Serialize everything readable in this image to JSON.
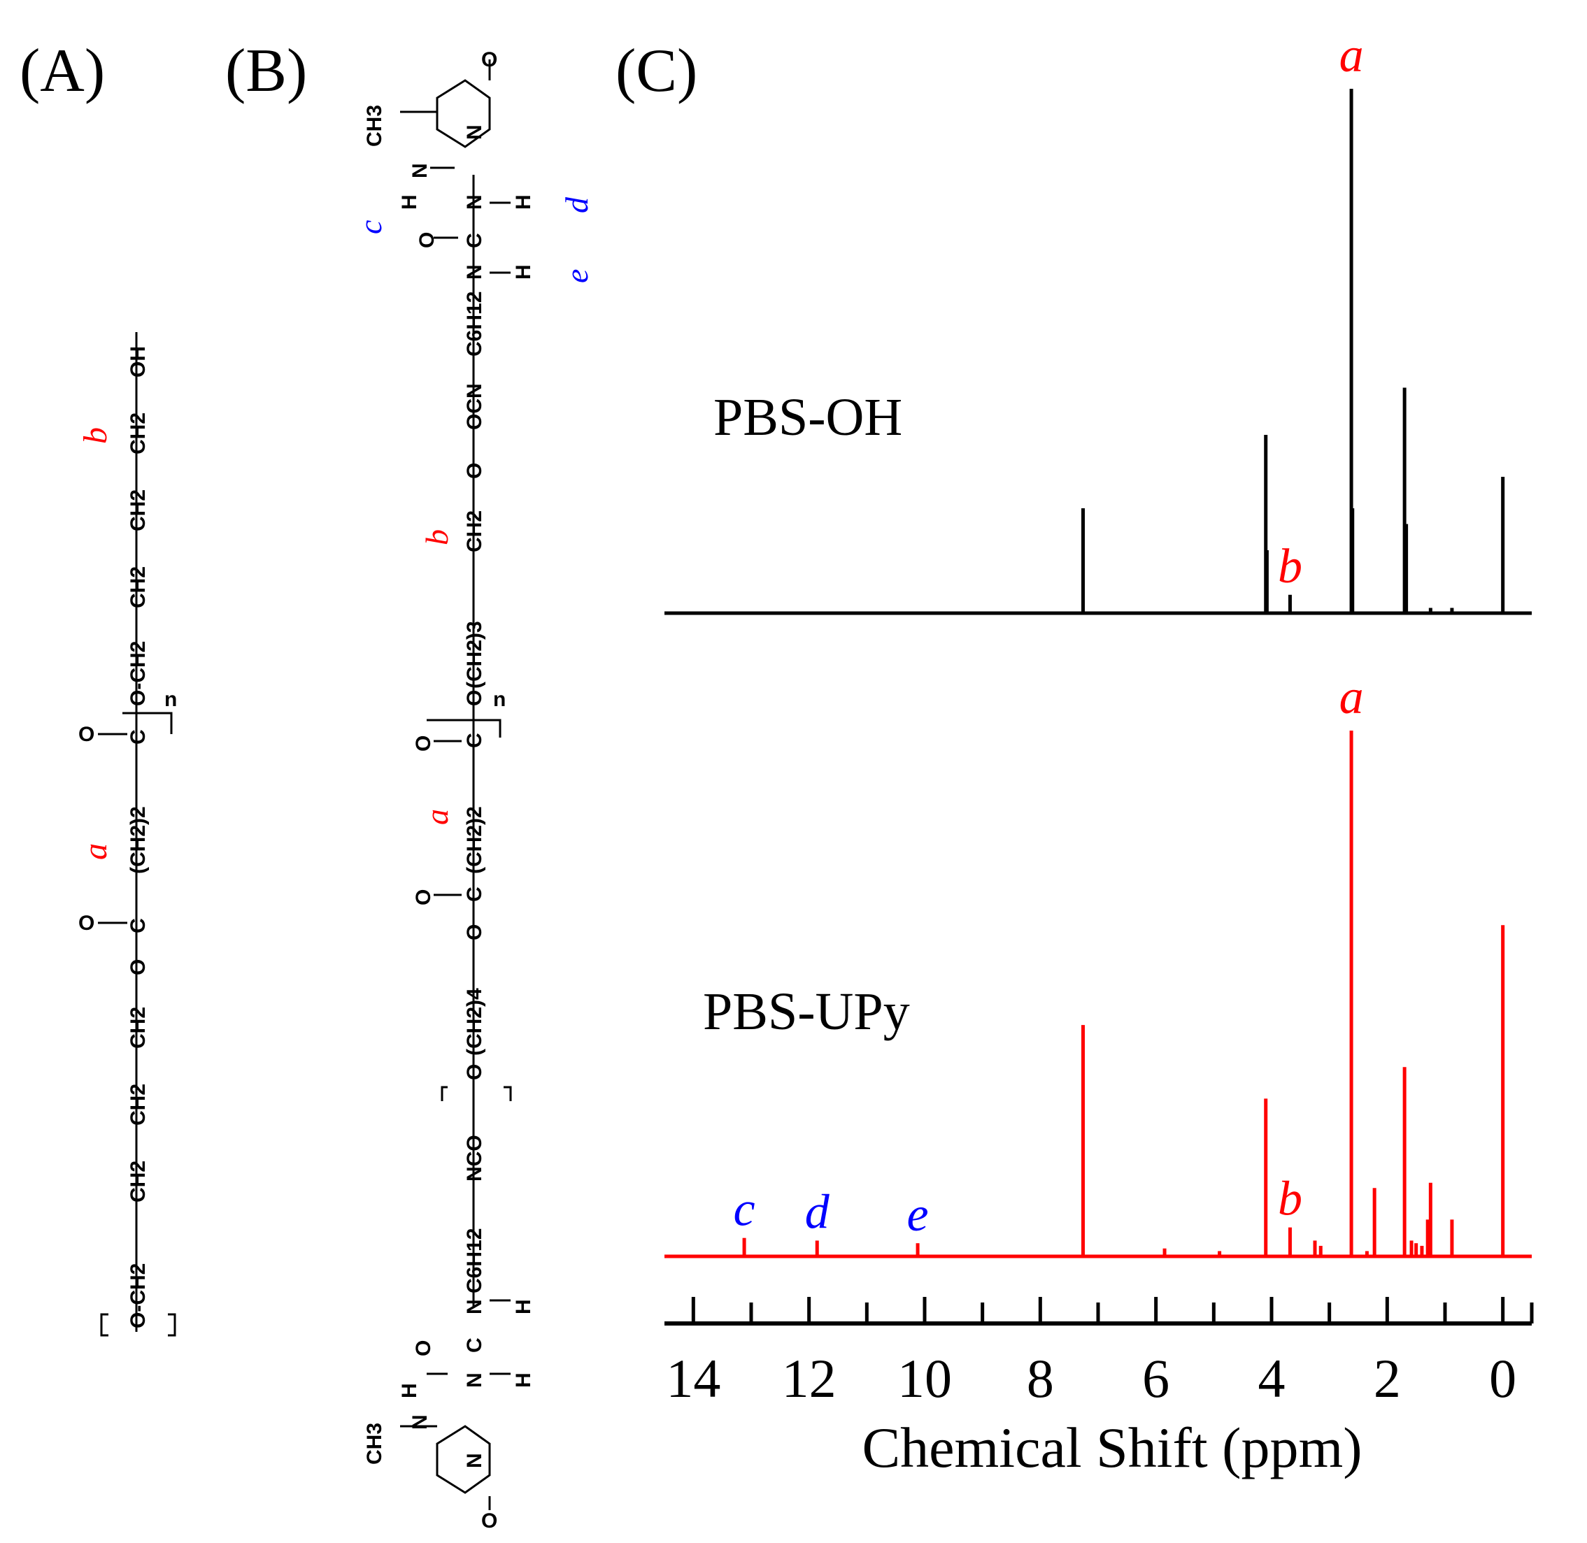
{
  "panels": {
    "A": "(A)",
    "B": "(B)",
    "C": "(C)"
  },
  "structure_A": {
    "repeat_unit_parts": [
      "O-CH2",
      "CH2",
      "CH2",
      "CH2",
      "O",
      "C",
      "O",
      "(CH2)2",
      "C",
      "O",
      "O-CH2",
      "CH2",
      "CH2",
      "CH2",
      "OH"
    ],
    "subscript_n": "n",
    "label_a": "a",
    "label_b": "b"
  },
  "structure_B": {
    "parts_text": [
      "CH3",
      "N",
      "N",
      "H",
      "O",
      "C",
      "N",
      "H",
      "N",
      "H",
      "C6H12",
      "NCO",
      "O",
      "(CH2)4",
      "O",
      "C",
      "O",
      "(CH2)2",
      "C",
      "O",
      "O",
      "(CH2)3",
      "CH2",
      "O",
      "OCN",
      "C6H12",
      "N",
      "H",
      "C",
      "O",
      "N",
      "H",
      "N",
      "H",
      "N",
      "CH3",
      "O",
      "O"
    ],
    "subscript_n": "n",
    "labels": {
      "a": "a",
      "b": "b",
      "c": "c",
      "d": "d",
      "e": "e"
    }
  },
  "colors": {
    "black_trace": "#000000",
    "red_trace": "#ff0000",
    "red_label": "#ff0000",
    "blue_label": "#0000ff"
  },
  "chart_data": {
    "type": "line",
    "title": "",
    "xlabel": "Chemical Shift (ppm)",
    "ylabel": "",
    "xlim": [
      14.5,
      -0.5
    ],
    "x_reversed": true,
    "xticks": [
      14,
      12,
      10,
      8,
      6,
      4,
      2,
      0
    ],
    "minor_tick_step": 1,
    "series": [
      {
        "name": "PBS-OH",
        "color": "#000000",
        "peaks": [
          {
            "x": 7.26,
            "h": 0.2
          },
          {
            "x": 4.1,
            "h": 0.34
          },
          {
            "x": 4.08,
            "h": 0.12
          },
          {
            "x": 3.68,
            "h": 0.035,
            "label": "b"
          },
          {
            "x": 2.62,
            "h": 1.0,
            "label": "a"
          },
          {
            "x": 2.6,
            "h": 0.2
          },
          {
            "x": 1.7,
            "h": 0.43
          },
          {
            "x": 1.67,
            "h": 0.17
          },
          {
            "x": 1.25,
            "h": 0.01
          },
          {
            "x": 0.88,
            "h": 0.01
          },
          {
            "x": 0.0,
            "h": 0.26
          }
        ]
      },
      {
        "name": "PBS-UPy",
        "color": "#ff0000",
        "peaks": [
          {
            "x": 13.12,
            "h": 0.035,
            "label": "c"
          },
          {
            "x": 11.86,
            "h": 0.03,
            "label": "d"
          },
          {
            "x": 10.12,
            "h": 0.025,
            "label": "e"
          },
          {
            "x": 7.26,
            "h": 0.44
          },
          {
            "x": 5.85,
            "h": 0.015
          },
          {
            "x": 4.9,
            "h": 0.01
          },
          {
            "x": 4.1,
            "h": 0.3
          },
          {
            "x": 3.68,
            "h": 0.055,
            "label": "b"
          },
          {
            "x": 3.25,
            "h": 0.03
          },
          {
            "x": 3.15,
            "h": 0.02
          },
          {
            "x": 2.62,
            "h": 1.0,
            "label": "a"
          },
          {
            "x": 2.35,
            "h": 0.01
          },
          {
            "x": 2.22,
            "h": 0.13
          },
          {
            "x": 1.7,
            "h": 0.36
          },
          {
            "x": 1.58,
            "h": 0.03
          },
          {
            "x": 1.5,
            "h": 0.025
          },
          {
            "x": 1.4,
            "h": 0.02
          },
          {
            "x": 1.3,
            "h": 0.07
          },
          {
            "x": 1.25,
            "h": 0.14
          },
          {
            "x": 0.88,
            "h": 0.07
          },
          {
            "x": 0.0,
            "h": 0.63
          }
        ]
      }
    ],
    "peak_label_colors": {
      "a": "#ff0000",
      "b": "#ff0000",
      "c": "#0000ff",
      "d": "#0000ff",
      "e": "#0000ff"
    }
  }
}
